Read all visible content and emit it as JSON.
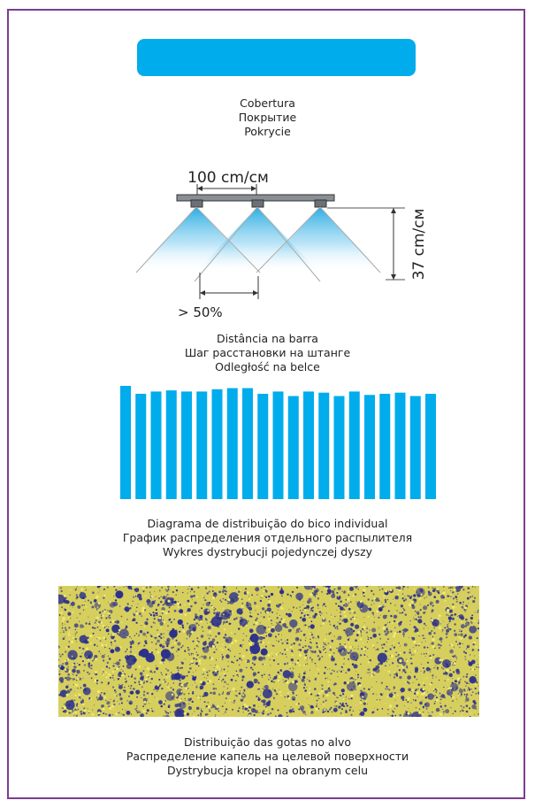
{
  "header": {
    "color": "#00acec"
  },
  "coverage_caption": [
    "Cobertura",
    "Покрытие",
    "Pokrycie"
  ],
  "nozzle_diagram": {
    "spacing_label": "100 cm/см",
    "height_label": "37 cm/см",
    "overlap_label": "> 50%"
  },
  "spacing_caption": [
    "Distância na barra",
    "Шаг расстановки на штанге",
    "Odległość na belce"
  ],
  "chart_data": {
    "type": "bar",
    "values": [
      100,
      93,
      95,
      96,
      95,
      95,
      97,
      98,
      98,
      93,
      95,
      91,
      95,
      94,
      91,
      95,
      92,
      93,
      94,
      91,
      93
    ],
    "ylim": [
      0,
      100
    ],
    "color": "#00acec"
  },
  "distribution_caption": [
    "Diagrama de distribuição do bico individual",
    "График распределения отдельного распылителя",
    "Wykres dystrybucji pojedynczej dyszy"
  ],
  "droplet_caption": [
    "Distribuição das gotas no alvo",
    "Распределение капель на целевой поверхности",
    "Dystrybucja kropel na obranym celu"
  ],
  "colors": {
    "frame": "#7a3f8f",
    "droplet_bg": "#d6cf5e",
    "droplet": "#2a2f8c"
  }
}
